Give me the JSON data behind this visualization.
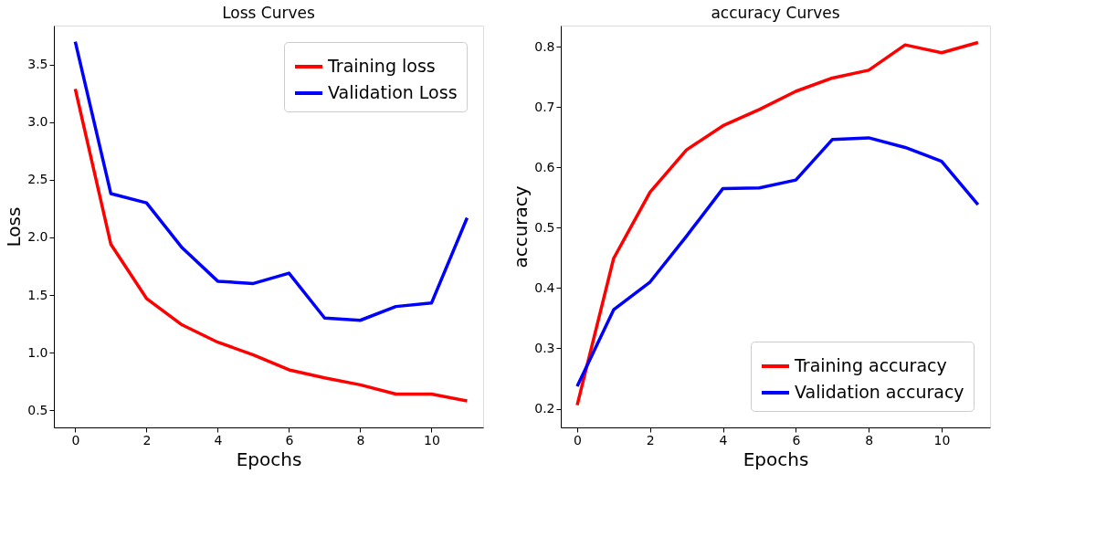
{
  "chart_data": [
    {
      "type": "line",
      "title": "Loss Curves",
      "xlabel": "Epochs",
      "ylabel": "Loss",
      "x": [
        0,
        1,
        2,
        3,
        4,
        5,
        6,
        7,
        8,
        9,
        10,
        11
      ],
      "xlim": [
        -0.6,
        11.45
      ],
      "xticks": [
        0,
        2,
        4,
        6,
        8,
        10
      ],
      "ylim": [
        0.35,
        3.84
      ],
      "yticks": [
        0.5,
        {
          "value": 1,
          "label": "1.0"
        },
        1.5,
        {
          "value": 2,
          "label": "2.0"
        },
        2.5,
        {
          "value": 3,
          "label": "3.0"
        },
        3.5
      ],
      "grid": false,
      "legend": "top right",
      "marker": "none",
      "line_style": "solid",
      "series": [
        {
          "name": "Training loss",
          "color": "#ff0000",
          "values": [
            3.29,
            1.94,
            1.47,
            1.24,
            1.09,
            0.98,
            0.85,
            0.78,
            0.72,
            0.64,
            0.64,
            0.58
          ]
        },
        {
          "name": "Validation Loss",
          "color": "#0000ff",
          "values": [
            3.7,
            2.38,
            2.3,
            1.91,
            1.62,
            1.6,
            1.69,
            1.3,
            1.28,
            1.4,
            1.43,
            2.17
          ]
        }
      ]
    },
    {
      "type": "line",
      "title": "accuracy Curves",
      "xlabel": "Epochs",
      "ylabel": "accuracy",
      "x": [
        0,
        1,
        2,
        3,
        4,
        5,
        6,
        7,
        8,
        9,
        10,
        11
      ],
      "xlim": [
        -0.45,
        11.33
      ],
      "xticks": [
        0,
        2,
        4,
        6,
        8,
        10
      ],
      "ylim": [
        0.169,
        0.835
      ],
      "yticks": [
        0.2,
        0.3,
        0.4,
        0.5,
        0.6,
        0.7,
        0.8
      ],
      "grid": false,
      "legend": "bottom right",
      "marker": "none",
      "line_style": "solid",
      "series": [
        {
          "name": "Training accuracy",
          "color": "#ff0000",
          "values": [
            0.206,
            0.449,
            0.559,
            0.629,
            0.669,
            0.696,
            0.726,
            0.748,
            0.761,
            0.803,
            0.79,
            0.807
          ]
        },
        {
          "name": "Validation accuracy",
          "color": "#0000ff",
          "values": [
            0.237,
            0.364,
            0.41,
            0.486,
            0.565,
            0.566,
            0.579,
            0.646,
            0.649,
            0.633,
            0.61,
            0.538
          ]
        }
      ]
    }
  ]
}
